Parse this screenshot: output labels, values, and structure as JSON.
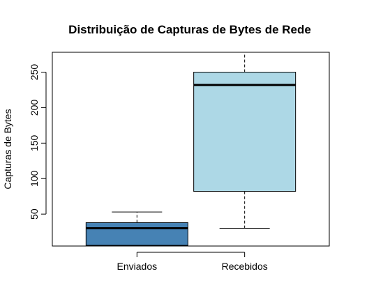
{
  "chart_data": {
    "type": "box",
    "title": "Distribuição de Capturas de Bytes de Rede",
    "xlabel": "",
    "ylabel": "Capturas de Bytes",
    "ylim": [
      5,
      278
    ],
    "yticks": [
      50,
      100,
      150,
      200,
      250
    ],
    "categories": [
      "Enviados",
      "Recebidos"
    ],
    "boxes": [
      {
        "name": "Enviados",
        "whisker_low": 5,
        "q1": 6,
        "median": 30,
        "q3": 38,
        "whisker_high": 53,
        "color": "#4682B4"
      },
      {
        "name": "Recebidos",
        "whisker_low": 30,
        "q1": 82,
        "median": 232,
        "q3": 250,
        "whisker_high": 278,
        "color": "#ADD8E6"
      }
    ],
    "grid": false
  }
}
